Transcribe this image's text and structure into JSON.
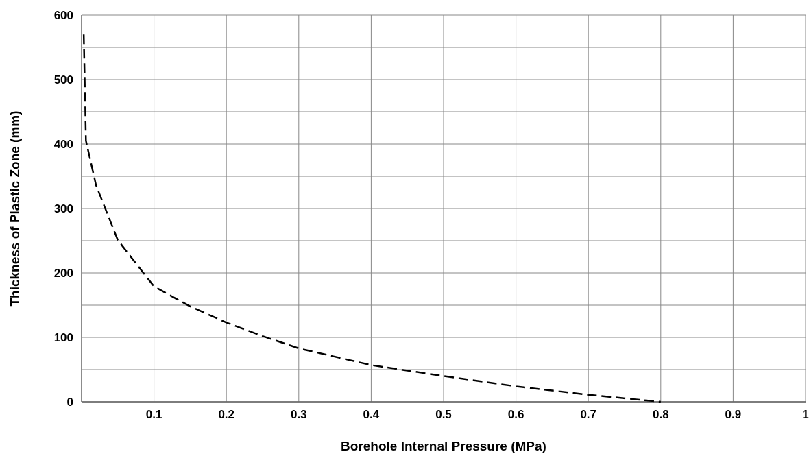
{
  "chart_data": {
    "type": "line",
    "xlabel": "Borehole Internal Pressure (MPa)",
    "ylabel": "Thickness of Plastic Zone (mm)",
    "xlim": [
      0,
      1
    ],
    "xticks": [
      0.1,
      0.2,
      0.3,
      0.4,
      0.5,
      0.6,
      0.7,
      0.8,
      0.9,
      1
    ],
    "ylim": [
      0,
      600
    ],
    "yticks": [
      0,
      {
        "value": 50,
        "label": null
      },
      100,
      {
        "value": 150,
        "label": null
      },
      200,
      {
        "value": 250,
        "label": null
      },
      300,
      {
        "value": 350,
        "label": null
      },
      400,
      {
        "value": 450,
        "label": null
      },
      500,
      {
        "value": 550,
        "label": null
      },
      600
    ],
    "grid": true,
    "line_style": "dashed",
    "marker": "none",
    "series": [
      {
        "color": "#000000",
        "x": [
          0.003,
          0.006,
          0.02,
          0.05,
          0.1,
          0.15,
          0.2,
          0.25,
          0.3,
          0.4,
          0.5,
          0.6,
          0.7,
          0.8
        ],
        "values": [
          570,
          405,
          336,
          251,
          179,
          148,
          123,
          102,
          83,
          57,
          40,
          24,
          11,
          0
        ]
      }
    ]
  }
}
